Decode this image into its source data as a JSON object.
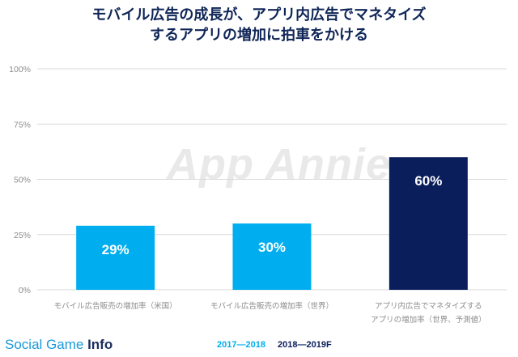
{
  "title_line1": "モバイル広告の成長が、アプリ内広告でマネタイズ",
  "title_line2": "するアプリの増加に拍車をかける",
  "watermark": "App Annie",
  "footer": {
    "brand_regular": "Social Game",
    "brand_bold": "Info"
  },
  "legend": [
    {
      "label": "2017—2018",
      "color": "#00aeef"
    },
    {
      "label": "2018—2019F",
      "color": "#0a1e5c"
    }
  ],
  "chart_data": {
    "type": "bar",
    "categories": [
      [
        "モバイル広告販売の増加率（米国）"
      ],
      [
        "モバイル広告販売の増加率（世界）"
      ],
      [
        "アプリ内広告でマネタイズする",
        "アプリの増加率（世界、予測値）"
      ]
    ],
    "values": [
      29,
      30,
      60
    ],
    "value_labels": [
      "29%",
      "30%",
      "60%"
    ],
    "bar_colors": [
      "#00aeef",
      "#00aeef",
      "#0a1e5c"
    ],
    "ylim": [
      0,
      100
    ],
    "yticks": [
      0,
      25,
      50,
      75,
      100
    ],
    "ytick_labels": [
      "0%",
      "25%",
      "50%",
      "75%",
      "100%"
    ],
    "grid": true
  }
}
